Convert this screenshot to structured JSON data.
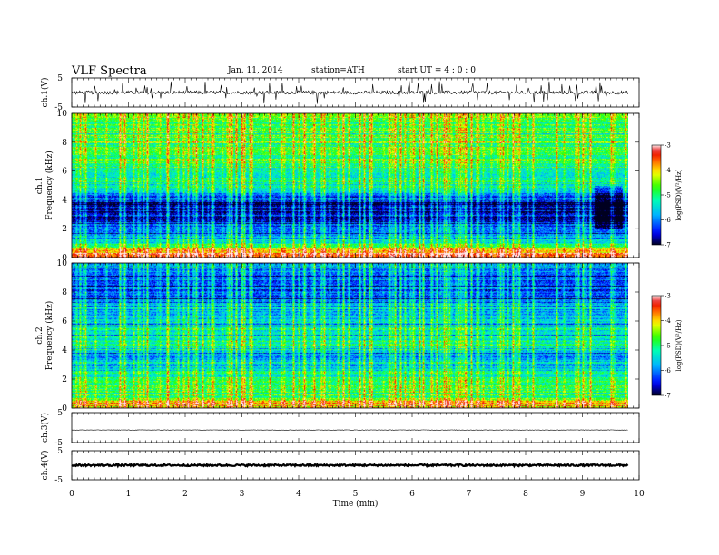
{
  "header": {
    "title": "VLF  Spectra",
    "date": "Jan. 11, 2014",
    "station": "station=ATH",
    "start_ut": "start  UT  =   4 : 0 : 0"
  },
  "chart_data": [
    {
      "type": "line",
      "panel": "ch1-waveform",
      "ylabel": "ch.1(V)",
      "ylim": [
        -5,
        5
      ],
      "yticks": [
        "5",
        "-5"
      ],
      "xlim": [
        0,
        10
      ],
      "trace_end_min": 9.8,
      "baseline_v": 0,
      "noise_amplitude_v": 0.6,
      "spike_amplitude_v": 3.5,
      "color": "#000000"
    },
    {
      "type": "heatmap",
      "panel": "ch1-spectrogram",
      "ylabel_channel": "ch.1",
      "ylabel": "Frequency  (kHz)",
      "ylim": [
        0,
        10
      ],
      "yticks": [
        "0",
        "2",
        "4",
        "6",
        "8",
        "10"
      ],
      "xlim": [
        0,
        10
      ],
      "data_end_min": 9.8,
      "colorbar": {
        "label": "log(PSD)(V²/Hz)",
        "range": [
          -7,
          -3
        ],
        "ticks": [
          "-3",
          "-4",
          "-5",
          "-6",
          "-7"
        ],
        "colors": [
          "#ffffff",
          "#ff0000",
          "#ffff00",
          "#00ff00",
          "#00ffff",
          "#0000ff",
          "#000020"
        ]
      },
      "profile": {
        "freq_khz": [
          0,
          0.3,
          0.6,
          1.0,
          1.5,
          2.0,
          2.5,
          3.0,
          3.5,
          4.0,
          4.5,
          5.0,
          5.5,
          6.0,
          6.5,
          7.0,
          7.5,
          8.0,
          8.5,
          9.0,
          9.5,
          10.0
        ],
        "log_psd": [
          -4.0,
          -3.5,
          -4.3,
          -5.3,
          -5.6,
          -6.1,
          -6.5,
          -6.6,
          -6.6,
          -6.4,
          -5.9,
          -5.3,
          -5.2,
          -5.1,
          -5.0,
          -5.0,
          -4.8,
          -4.7,
          -4.8,
          -4.9,
          -4.8,
          -4.6
        ]
      },
      "notable_features": "vertical broadband sferic streaks; deep blue band 2–4.5 kHz; red line near 0.6 kHz; deeper blue patch around 9.2–9.7 min at 2–5 kHz"
    },
    {
      "type": "heatmap",
      "panel": "ch2-spectrogram",
      "ylabel_channel": "ch.2",
      "ylabel": "Frequency  (kHz)",
      "ylim": [
        0,
        10
      ],
      "yticks": [
        "0",
        "2",
        "4",
        "6",
        "8",
        "10"
      ],
      "xlim": [
        0,
        10
      ],
      "data_end_min": 9.8,
      "colorbar": {
        "label": "log(PSD)(V²/Hz)",
        "range": [
          -7,
          -3
        ],
        "ticks": [
          "-3",
          "-4",
          "-5",
          "-6",
          "-7"
        ],
        "colors": [
          "#ffffff",
          "#ff0000",
          "#ffff00",
          "#00ff00",
          "#00ffff",
          "#0000ff",
          "#000020"
        ]
      },
      "profile": {
        "freq_khz": [
          0,
          0.3,
          0.6,
          1.0,
          1.5,
          2.0,
          2.5,
          3.0,
          3.5,
          4.0,
          4.5,
          5.0,
          5.5,
          6.0,
          6.5,
          7.0,
          7.5,
          8.0,
          8.5,
          9.0,
          9.5,
          10.0
        ],
        "log_psd": [
          -4.2,
          -3.8,
          -4.3,
          -4.8,
          -4.9,
          -5.0,
          -5.4,
          -5.6,
          -5.8,
          -5.4,
          -5.3,
          -5.3,
          -5.4,
          -5.5,
          -5.6,
          -5.8,
          -6.0,
          -6.2,
          -6.3,
          -6.2,
          -6.0,
          -5.9
        ]
      },
      "notable_features": "vertical broadband sferic streaks; blue/dark band 6–10 kHz; orange-red lines below 1 kHz"
    },
    {
      "type": "line",
      "panel": "ch3-waveform",
      "ylabel": "ch.3(V)",
      "ylim": [
        -5,
        5
      ],
      "yticks": [
        "5",
        "-5"
      ],
      "xlim": [
        0,
        10
      ],
      "trace_end_min": 9.8,
      "baseline_v": -0.8,
      "noise_amplitude_v": 0.08,
      "color": "#000000"
    },
    {
      "type": "line",
      "panel": "ch4-waveform",
      "ylabel": "ch.4(V)",
      "ylim": [
        -5,
        5
      ],
      "yticks": [
        "5",
        "-5"
      ],
      "xlim": [
        0,
        10
      ],
      "trace_end_min": 9.8,
      "baseline_v": 0,
      "noise_amplitude_v": 0.3,
      "color": "#000000"
    }
  ],
  "x_axis": {
    "label": "Time  (min)",
    "ticks": [
      "0",
      "1",
      "2",
      "3",
      "4",
      "5",
      "6",
      "7",
      "8",
      "9",
      "10"
    ],
    "range": [
      0,
      10
    ]
  }
}
